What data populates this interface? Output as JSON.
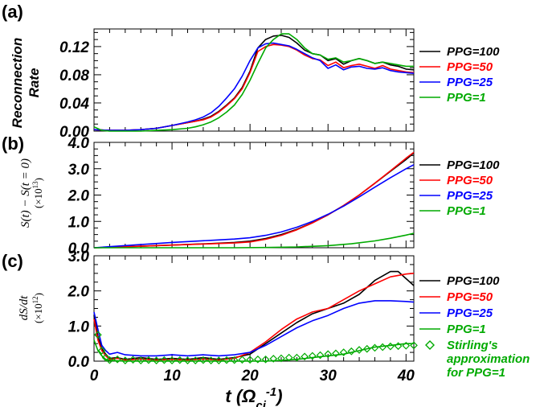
{
  "x_axis": {
    "label": "t (Ω",
    "label_sub": "ci",
    "label_sup": "-1",
    "label_close": ")",
    "ticks": [
      "0",
      "10",
      "20",
      "30",
      "40"
    ]
  },
  "colors": {
    "PPG=100": "#000000",
    "PPG=50": "#ff0000",
    "PPG=25": "#0000ff",
    "PPG=1": "#00aa00"
  },
  "chart_data": [
    {
      "panel": "(a)",
      "type": "line",
      "ylabel": [
        "Reconnection",
        "Rate"
      ],
      "xlim": [
        0,
        41
      ],
      "ylim": [
        0,
        0.145
      ],
      "yticks": [
        "0.00",
        "0.04",
        "0.08",
        "0.12"
      ],
      "ytick_values": [
        0,
        0.04,
        0.08,
        0.12
      ],
      "legend": [
        "PPG=100",
        "PPG=50",
        "PPG=25",
        "PPG=1"
      ],
      "series": [
        {
          "name": "PPG=100",
          "x": [
            0,
            2,
            4,
            6,
            8,
            10,
            12,
            13,
            14,
            15,
            16,
            17,
            18,
            19,
            20,
            21,
            22,
            23,
            24,
            25,
            26,
            27,
            28,
            29,
            30,
            31,
            32,
            33,
            34,
            35,
            36,
            37,
            38,
            39,
            40,
            41
          ],
          "y": [
            0.002,
            0.001,
            0.001,
            0.002,
            0.004,
            0.008,
            0.012,
            0.014,
            0.017,
            0.021,
            0.028,
            0.037,
            0.047,
            0.062,
            0.085,
            0.118,
            0.13,
            0.135,
            0.136,
            0.133,
            0.125,
            0.115,
            0.11,
            0.108,
            0.1,
            0.103,
            0.095,
            0.1,
            0.103,
            0.1,
            0.096,
            0.098,
            0.094,
            0.092,
            0.088,
            0.087
          ]
        },
        {
          "name": "PPG=50",
          "x": [
            0,
            2,
            4,
            6,
            8,
            10,
            12,
            13,
            14,
            15,
            16,
            17,
            18,
            19,
            20,
            21,
            22,
            23,
            24,
            25,
            26,
            27,
            28,
            29,
            30,
            31,
            32,
            33,
            34,
            35,
            36,
            37,
            38,
            39,
            40,
            41
          ],
          "y": [
            0.002,
            0.001,
            0.001,
            0.002,
            0.004,
            0.008,
            0.012,
            0.014,
            0.016,
            0.02,
            0.027,
            0.036,
            0.046,
            0.06,
            0.083,
            0.113,
            0.12,
            0.123,
            0.122,
            0.12,
            0.115,
            0.108,
            0.103,
            0.101,
            0.093,
            0.098,
            0.09,
            0.093,
            0.095,
            0.092,
            0.089,
            0.093,
            0.088,
            0.086,
            0.084,
            0.083
          ]
        },
        {
          "name": "PPG=25",
          "x": [
            0,
            2,
            4,
            6,
            8,
            10,
            12,
            13,
            14,
            15,
            16,
            17,
            18,
            19,
            20,
            21,
            22,
            23,
            24,
            25,
            26,
            27,
            28,
            29,
            30,
            31,
            32,
            33,
            34,
            35,
            36,
            37,
            38,
            39,
            40,
            41
          ],
          "y": [
            0.002,
            0.001,
            0.001,
            0.002,
            0.004,
            0.008,
            0.013,
            0.016,
            0.02,
            0.026,
            0.035,
            0.047,
            0.06,
            0.078,
            0.1,
            0.118,
            0.124,
            0.125,
            0.123,
            0.121,
            0.116,
            0.11,
            0.104,
            0.1,
            0.089,
            0.094,
            0.087,
            0.091,
            0.092,
            0.089,
            0.088,
            0.09,
            0.086,
            0.084,
            0.083,
            0.082
          ]
        },
        {
          "name": "PPG=1",
          "x": [
            0,
            1,
            2,
            4,
            6,
            8,
            10,
            12,
            13,
            14,
            15,
            16,
            17,
            18,
            19,
            20,
            21,
            22,
            23,
            24,
            25,
            26,
            27,
            28,
            29,
            30,
            31,
            32,
            33,
            34,
            35,
            36,
            37,
            38,
            39,
            40,
            41
          ],
          "y": [
            0.006,
            0.001,
            0.0,
            0.0,
            0.0,
            0.001,
            0.002,
            0.004,
            0.006,
            0.009,
            0.013,
            0.019,
            0.027,
            0.037,
            0.052,
            0.072,
            0.096,
            0.118,
            0.13,
            0.138,
            0.138,
            0.13,
            0.118,
            0.11,
            0.108,
            0.102,
            0.104,
            0.098,
            0.1,
            0.103,
            0.1,
            0.096,
            0.098,
            0.096,
            0.094,
            0.092,
            0.092
          ]
        }
      ]
    },
    {
      "panel": "(b)",
      "type": "line",
      "ylabel": [
        "S(t) − S(t = 0)",
        "(×10",
        "13",
        ")"
      ],
      "xlim": [
        0,
        41
      ],
      "ylim": [
        0,
        4.0
      ],
      "yticks": [
        "0.0",
        "1.0",
        "2.0",
        "3.0",
        "4.0"
      ],
      "ytick_values": [
        0,
        1,
        2,
        3,
        4
      ],
      "legend": [
        "PPG=100",
        "PPG=50",
        "PPG=25",
        "PPG=1"
      ],
      "series": [
        {
          "name": "PPG=100",
          "x": [
            0,
            5,
            10,
            15,
            18,
            20,
            22,
            24,
            26,
            28,
            30,
            32,
            34,
            36,
            38,
            40,
            41
          ],
          "y": [
            0.0,
            0.05,
            0.1,
            0.16,
            0.2,
            0.25,
            0.35,
            0.5,
            0.7,
            0.95,
            1.25,
            1.6,
            2.0,
            2.45,
            2.9,
            3.35,
            3.6
          ]
        },
        {
          "name": "PPG=50",
          "x": [
            0,
            5,
            10,
            15,
            18,
            20,
            22,
            24,
            26,
            28,
            30,
            32,
            34,
            36,
            38,
            40,
            41
          ],
          "y": [
            0.0,
            0.05,
            0.1,
            0.15,
            0.18,
            0.22,
            0.32,
            0.47,
            0.68,
            0.94,
            1.25,
            1.6,
            2.0,
            2.45,
            2.92,
            3.4,
            3.62
          ]
        },
        {
          "name": "PPG=25",
          "x": [
            0,
            5,
            10,
            15,
            18,
            20,
            22,
            24,
            26,
            28,
            30,
            32,
            34,
            36,
            38,
            40,
            41
          ],
          "y": [
            0.0,
            0.1,
            0.2,
            0.28,
            0.33,
            0.38,
            0.47,
            0.6,
            0.78,
            1.0,
            1.27,
            1.58,
            1.93,
            2.3,
            2.66,
            3.0,
            3.15
          ]
        },
        {
          "name": "PPG=1",
          "x": [
            0,
            10,
            18,
            22,
            26,
            30,
            33,
            36,
            38,
            40,
            41
          ],
          "y": [
            0.0,
            0.0,
            0.0,
            0.01,
            0.03,
            0.08,
            0.15,
            0.26,
            0.36,
            0.48,
            0.55
          ]
        }
      ]
    },
    {
      "panel": "(c)",
      "type": "line",
      "ylabel": [
        "dS/dt",
        "(×10",
        "12",
        ")"
      ],
      "xlim": [
        0,
        41
      ],
      "ylim": [
        0,
        3.0
      ],
      "yticks": [
        "0.0",
        "1.0",
        "2.0",
        "3.0"
      ],
      "ytick_values": [
        0,
        1,
        2,
        3
      ],
      "legend": [
        "PPG=100",
        "PPG=50",
        "PPG=25",
        "PPG=1",
        "Stirling's",
        "approximation",
        "for PPG=1"
      ],
      "series": [
        {
          "name": "PPG=100",
          "x": [
            0,
            0.5,
            1,
            1.5,
            2,
            3,
            4,
            6,
            8,
            10,
            12,
            14,
            16,
            18,
            20,
            22,
            24,
            26,
            28,
            30,
            32,
            34,
            36,
            38,
            39,
            40,
            41
          ],
          "y": [
            1.3,
            0.7,
            0.35,
            0.2,
            0.08,
            0.1,
            0.05,
            0.1,
            0.05,
            0.08,
            0.05,
            0.1,
            0.05,
            0.1,
            0.2,
            0.5,
            0.8,
            1.1,
            1.35,
            1.5,
            1.65,
            1.9,
            2.3,
            2.55,
            2.55,
            2.35,
            2.15
          ]
        },
        {
          "name": "PPG=50",
          "x": [
            0,
            0.5,
            1,
            1.5,
            2,
            3,
            4,
            6,
            8,
            10,
            12,
            14,
            16,
            18,
            20,
            22,
            24,
            26,
            28,
            30,
            32,
            34,
            36,
            38,
            40,
            41
          ],
          "y": [
            1.2,
            0.6,
            0.3,
            0.15,
            0.05,
            0.08,
            0.03,
            0.06,
            0.03,
            0.05,
            0.03,
            0.06,
            0.03,
            0.08,
            0.25,
            0.55,
            0.9,
            1.2,
            1.4,
            1.5,
            1.75,
            2.0,
            2.2,
            2.4,
            2.48,
            2.5
          ]
        },
        {
          "name": "PPG=25",
          "x": [
            0,
            0.5,
            1,
            1.5,
            2,
            3,
            4,
            6,
            8,
            10,
            12,
            14,
            16,
            18,
            20,
            22,
            24,
            26,
            28,
            30,
            32,
            34,
            36,
            38,
            40,
            41
          ],
          "y": [
            1.4,
            0.9,
            0.45,
            0.3,
            0.2,
            0.25,
            0.18,
            0.15,
            0.15,
            0.18,
            0.15,
            0.18,
            0.15,
            0.18,
            0.25,
            0.45,
            0.7,
            0.95,
            1.15,
            1.3,
            1.5,
            1.65,
            1.72,
            1.72,
            1.7,
            1.68
          ]
        },
        {
          "name": "PPG=1",
          "x": [
            0,
            0.5,
            1,
            1.5,
            2,
            3,
            4,
            6,
            8,
            10,
            12,
            14,
            16,
            18,
            20,
            22,
            24,
            26,
            28,
            30,
            32,
            34,
            36,
            38,
            40,
            41
          ],
          "y": [
            0.6,
            0.3,
            0.15,
            0.05,
            0.02,
            0.01,
            0.0,
            0.0,
            0.0,
            0.0,
            0.0,
            0.0,
            0.0,
            0.0,
            0.0,
            0.0,
            0.02,
            0.05,
            0.1,
            0.15,
            0.2,
            0.3,
            0.4,
            0.45,
            0.5,
            0.5
          ]
        },
        {
          "name": "Stirling's approximation for PPG=1",
          "marker": "diamond",
          "x": [
            0.5,
            1,
            1.5,
            2,
            3,
            4,
            5,
            6,
            7,
            8,
            9,
            10,
            11,
            12,
            13,
            14,
            15,
            16,
            17,
            18,
            19,
            20,
            21,
            22,
            23,
            24,
            25,
            26,
            27,
            28,
            29,
            30,
            31,
            32,
            33,
            34,
            35,
            36,
            37,
            38,
            39,
            40,
            41
          ],
          "y": [
            0.75,
            0.3,
            0.1,
            0.03,
            0.05,
            0.02,
            0.04,
            0.02,
            0.03,
            0.02,
            0.03,
            0.02,
            0.03,
            0.02,
            0.02,
            0.03,
            0.02,
            0.02,
            0.03,
            0.03,
            0.04,
            0.04,
            0.05,
            0.05,
            0.07,
            0.08,
            0.1,
            0.1,
            0.13,
            0.15,
            0.17,
            0.2,
            0.22,
            0.25,
            0.28,
            0.32,
            0.35,
            0.38,
            0.4,
            0.42,
            0.43,
            0.44,
            0.45
          ]
        }
      ]
    }
  ]
}
